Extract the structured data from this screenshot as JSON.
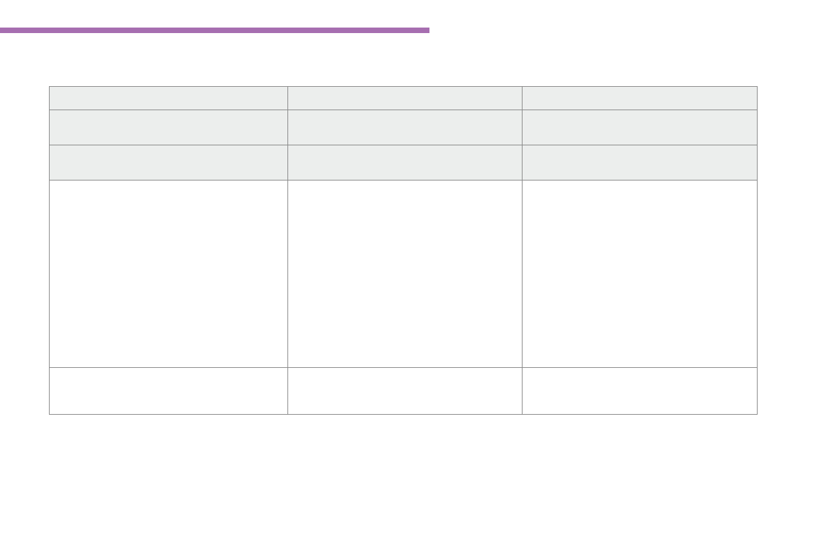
{
  "colors": {
    "accent_bar": "#a66eb0",
    "shaded_row": "#eceeed",
    "border": "#8a8a8a"
  },
  "table": {
    "rows": [
      {
        "shaded": true,
        "cells": [
          "",
          "",
          ""
        ]
      },
      {
        "shaded": true,
        "cells": [
          "",
          "",
          ""
        ]
      },
      {
        "shaded": true,
        "cells": [
          "",
          "",
          ""
        ]
      },
      {
        "shaded": false,
        "cells": [
          "",
          "",
          ""
        ]
      },
      {
        "shaded": false,
        "cells": [
          "",
          "",
          ""
        ]
      }
    ]
  }
}
